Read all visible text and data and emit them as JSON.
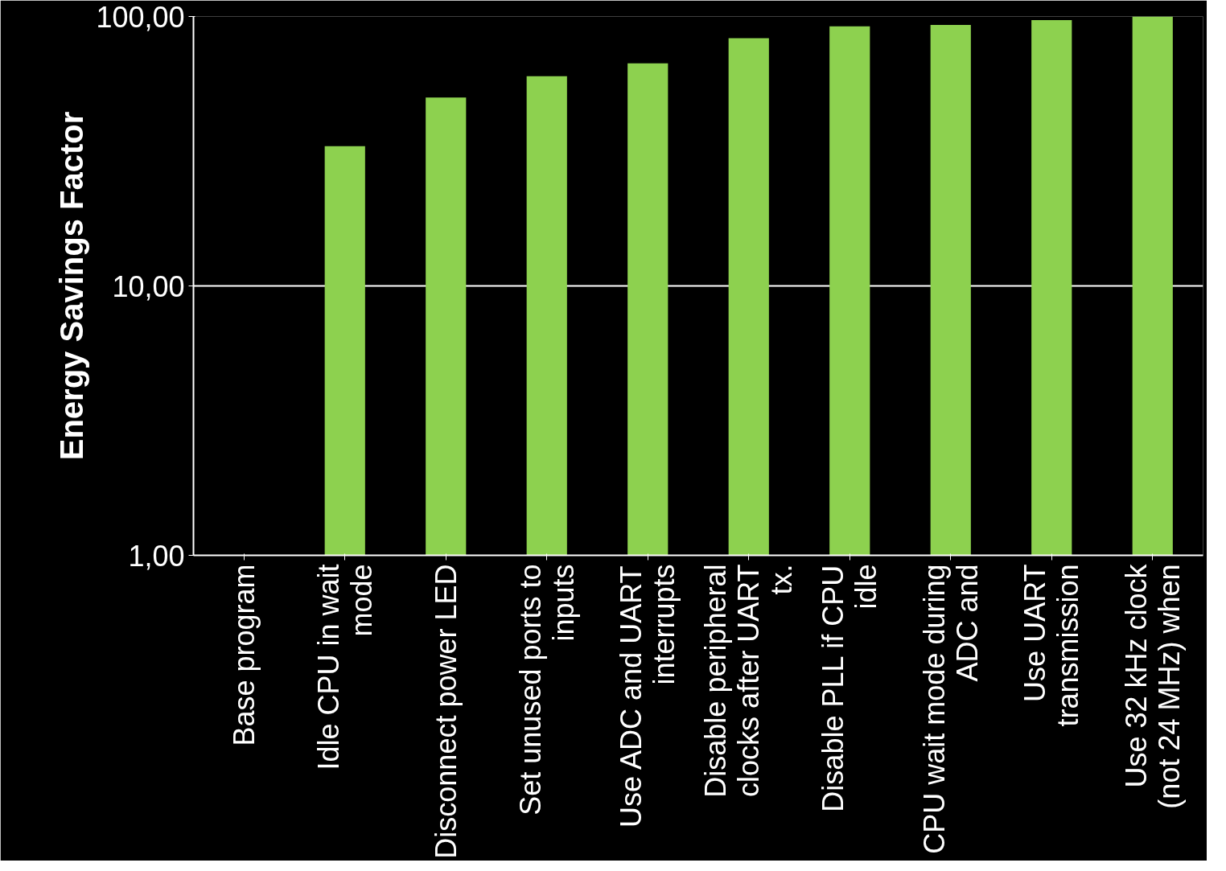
{
  "chart_data": {
    "type": "bar",
    "ylabel": "Energy Savings Factor",
    "categories": [
      "Base program",
      "Idle CPU in wait mode",
      "Disconnect power LED",
      "Set unused ports to inputs",
      "Use ADC and UART interrupts",
      "Disable peripheral clocks after UART tx.",
      "Disable PLL if CPU idle",
      "CPU wait mode during ADC and",
      "Use UART transmission",
      "Use 32 kHz clock (not 24 MHz) when"
    ],
    "values": [
      1,
      33,
      50,
      60,
      67,
      83,
      92,
      93,
      97,
      100
    ],
    "color": "#8dd14f",
    "log": true,
    "ylim": [
      1,
      100
    ],
    "yticks": [
      {
        "value": 1,
        "label": "1,00"
      },
      {
        "value": 10,
        "label": "10,00"
      },
      {
        "value": 100,
        "label": "100,00"
      }
    ],
    "grid": "y"
  }
}
